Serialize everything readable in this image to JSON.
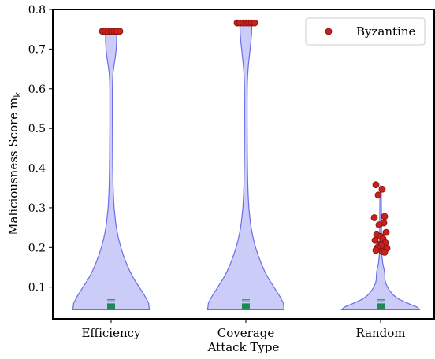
{
  "chart_data": {
    "type": "violin",
    "ylabel": "Maliciousness Score m",
    "ylabel_subscript": "k",
    "xlabel": "Attack Type",
    "ylim": [
      0.02,
      0.8
    ],
    "yticks": [
      {
        "value": 0.1,
        "label": "0.1"
      },
      {
        "value": 0.2,
        "label": "0.2"
      },
      {
        "value": 0.3,
        "label": "0.3"
      },
      {
        "value": 0.4,
        "label": "0.4"
      },
      {
        "value": 0.5,
        "label": "0.5"
      },
      {
        "value": 0.6,
        "label": "0.6"
      },
      {
        "value": 0.7,
        "label": "0.7"
      },
      {
        "value": 0.8,
        "label": "0.8"
      }
    ],
    "categories": [
      "Efficiency",
      "Coverage",
      "Random"
    ],
    "legend": {
      "label": "Byzantine",
      "location": "top-right"
    },
    "colors": {
      "violin_fill": "#c8caf8",
      "violin_edge": "#6a6ee8",
      "byzantine_fill": "#c8231b",
      "byzantine_edge": "#7a1410",
      "median_marker": "#1e8a52"
    },
    "violins": [
      {
        "category": "Efficiency",
        "range": [
          0.043,
          0.745
        ],
        "density": [
          [
            0.043,
            0.9
          ],
          [
            0.06,
            0.88
          ],
          [
            0.08,
            0.78
          ],
          [
            0.1,
            0.66
          ],
          [
            0.12,
            0.54
          ],
          [
            0.14,
            0.44
          ],
          [
            0.16,
            0.36
          ],
          [
            0.18,
            0.29
          ],
          [
            0.2,
            0.23
          ],
          [
            0.22,
            0.18
          ],
          [
            0.24,
            0.14
          ],
          [
            0.26,
            0.11
          ],
          [
            0.28,
            0.09
          ],
          [
            0.3,
            0.07
          ],
          [
            0.33,
            0.055
          ],
          [
            0.36,
            0.045
          ],
          [
            0.4,
            0.038
          ],
          [
            0.44,
            0.034
          ],
          [
            0.48,
            0.032
          ],
          [
            0.52,
            0.03
          ],
          [
            0.56,
            0.03
          ],
          [
            0.6,
            0.03
          ],
          [
            0.62,
            0.034
          ],
          [
            0.64,
            0.045
          ],
          [
            0.66,
            0.07
          ],
          [
            0.68,
            0.1
          ],
          [
            0.7,
            0.12
          ],
          [
            0.72,
            0.13
          ],
          [
            0.735,
            0.13
          ],
          [
            0.745,
            0.12
          ]
        ],
        "byzantine_points": [
          0.745,
          0.745,
          0.745,
          0.745,
          0.745,
          0.745,
          0.745
        ],
        "median": 0.051,
        "quartile_lines": [
          0.063,
          0.068
        ]
      },
      {
        "category": "Coverage",
        "range": [
          0.043,
          0.766
        ],
        "density": [
          [
            0.043,
            0.9
          ],
          [
            0.06,
            0.88
          ],
          [
            0.08,
            0.78
          ],
          [
            0.1,
            0.66
          ],
          [
            0.12,
            0.54
          ],
          [
            0.14,
            0.44
          ],
          [
            0.16,
            0.36
          ],
          [
            0.18,
            0.29
          ],
          [
            0.2,
            0.23
          ],
          [
            0.22,
            0.18
          ],
          [
            0.24,
            0.14
          ],
          [
            0.26,
            0.11
          ],
          [
            0.28,
            0.09
          ],
          [
            0.3,
            0.07
          ],
          [
            0.33,
            0.055
          ],
          [
            0.36,
            0.045
          ],
          [
            0.4,
            0.038
          ],
          [
            0.44,
            0.034
          ],
          [
            0.48,
            0.032
          ],
          [
            0.52,
            0.03
          ],
          [
            0.56,
            0.03
          ],
          [
            0.6,
            0.032
          ],
          [
            0.63,
            0.04
          ],
          [
            0.66,
            0.06
          ],
          [
            0.69,
            0.09
          ],
          [
            0.72,
            0.12
          ],
          [
            0.74,
            0.135
          ],
          [
            0.755,
            0.14
          ],
          [
            0.766,
            0.13
          ]
        ],
        "byzantine_points": [
          0.766,
          0.766,
          0.766,
          0.766,
          0.766,
          0.766,
          0.766
        ],
        "median": 0.051,
        "quartile_lines": [
          0.063,
          0.068
        ]
      },
      {
        "category": "Random",
        "range": [
          0.043,
          0.355
        ],
        "density": [
          [
            0.043,
            0.92
          ],
          [
            0.05,
            0.85
          ],
          [
            0.06,
            0.62
          ],
          [
            0.07,
            0.42
          ],
          [
            0.08,
            0.3
          ],
          [
            0.09,
            0.22
          ],
          [
            0.1,
            0.16
          ],
          [
            0.11,
            0.12
          ],
          [
            0.12,
            0.1
          ],
          [
            0.13,
            0.1
          ],
          [
            0.14,
            0.09
          ],
          [
            0.15,
            0.07
          ],
          [
            0.16,
            0.05
          ],
          [
            0.18,
            0.03
          ],
          [
            0.2,
            0.025
          ],
          [
            0.22,
            0.022
          ],
          [
            0.25,
            0.02
          ],
          [
            0.28,
            0.02
          ],
          [
            0.31,
            0.018
          ],
          [
            0.335,
            0.015
          ],
          [
            0.355,
            0.008
          ]
        ],
        "byzantine_points": [
          0.358,
          0.347,
          0.332,
          0.278,
          0.275,
          0.262,
          0.257,
          0.238,
          0.232,
          0.228,
          0.222,
          0.218,
          0.212,
          0.208,
          0.205,
          0.2,
          0.198,
          0.193,
          0.19,
          0.188
        ],
        "median": 0.051,
        "quartile_lines": [
          0.063,
          0.068
        ]
      }
    ]
  }
}
